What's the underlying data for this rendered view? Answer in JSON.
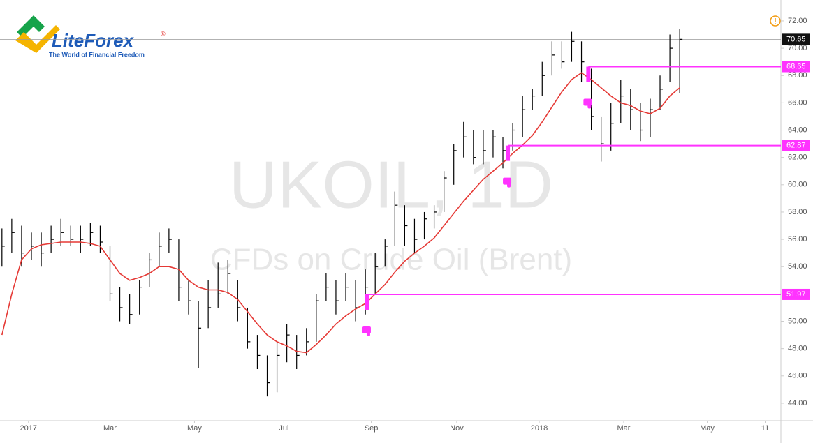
{
  "chart_data": {
    "type": "ohlc",
    "symbol": "UKOIL, 1D",
    "description": "CFDs on Crude Oil (Brent)",
    "brand": {
      "name": "LiteForex",
      "mark": "®",
      "tagline": "The World of Financial Freedom"
    },
    "high": [
      56.8,
      57.5,
      57,
      56.5,
      56.5,
      57,
      57.5,
      57,
      57,
      57.2,
      57,
      55.5,
      52.5,
      52,
      53,
      55,
      56.5,
      56.8,
      56,
      53,
      51.5,
      53,
      54.3,
      54.5,
      53,
      51,
      49,
      47.5,
      48.5,
      49.8,
      49,
      49.5,
      52,
      53.5,
      53,
      53.5,
      53,
      53.8,
      55,
      56,
      59.5,
      58.5,
      57.5,
      58,
      58.5,
      61,
      63,
      64.6,
      64,
      64,
      64,
      63.5,
      64.5,
      66.5,
      67,
      69,
      70.5,
      70.5,
      71.2,
      70.5,
      68.5,
      65,
      66,
      67.7,
      67,
      66,
      66.3,
      68,
      71,
      71.4
    ],
    "low": [
      54,
      55,
      54,
      54.5,
      54,
      55,
      55.5,
      55.5,
      55,
      55.5,
      55,
      51.5,
      50,
      49.8,
      50.5,
      52.5,
      54,
      55,
      51.5,
      50.5,
      46.6,
      49.5,
      51,
      52,
      50,
      48,
      46.5,
      44.5,
      44.8,
      47,
      46.5,
      47.5,
      48.5,
      51.5,
      50.5,
      51.5,
      50,
      50.5,
      52,
      54,
      55.5,
      55.5,
      55,
      56,
      56.8,
      58,
      60,
      62,
      61.5,
      61.5,
      62,
      61.2,
      62.5,
      63.5,
      65.5,
      66.5,
      68,
      68.5,
      69,
      67.5,
      64,
      61.7,
      62.5,
      64.5,
      64,
      63.2,
      63.5,
      65.5,
      67.5,
      66.7
    ],
    "close": [
      55.5,
      56.5,
      55,
      55.5,
      55,
      56,
      56.5,
      56,
      56,
      56.5,
      55.8,
      52,
      51,
      50.5,
      52.5,
      54.5,
      55.5,
      56,
      52.5,
      51.5,
      49.5,
      51,
      52,
      53.5,
      51,
      48.5,
      47.5,
      45.5,
      47.5,
      49,
      47.5,
      48.5,
      51.5,
      52.5,
      51.5,
      52.5,
      51,
      52.5,
      54,
      55.5,
      58.5,
      57,
      56,
      57.5,
      58,
      60.5,
      62.5,
      63.5,
      62,
      62.5,
      63.5,
      62.5,
      64,
      65.5,
      66.5,
      68,
      69.5,
      69,
      70.5,
      69,
      65,
      63,
      64.5,
      66.5,
      65.5,
      64,
      65.5,
      67,
      70,
      70.65
    ],
    "color": "#000000",
    "ma": [
      49,
      52,
      54.5,
      55.3,
      55.6,
      55.7,
      55.8,
      55.8,
      55.8,
      55.7,
      55.5,
      54.5,
      53.5,
      53,
      53.2,
      53.5,
      54,
      54,
      53.8,
      53,
      52.5,
      52.3,
      52.3,
      52.1,
      51.6,
      50.7,
      49.8,
      49,
      48.5,
      48.2,
      47.8,
      47.7,
      48.3,
      49,
      49.8,
      50.4,
      50.9,
      51.3,
      52,
      52.7,
      53.6,
      54.4,
      55,
      55.5,
      56.1,
      57,
      57.9,
      58.8,
      59.6,
      60.4,
      61,
      61.6,
      62.3,
      62.9,
      63.6,
      64.6,
      65.7,
      66.8,
      67.7,
      68.2,
      67.7,
      67.1,
      66.5,
      66,
      65.8,
      65.4,
      65.2,
      65.6,
      66.5,
      67.1
    ],
    "ma_color": "#e53935",
    "levels": [
      {
        "value": 68.65,
        "start": 59.7
      },
      {
        "value": 62.87,
        "start": 51.5
      },
      {
        "value": 51.97,
        "start": 37.2
      }
    ],
    "level_color": "#ff33ff",
    "last_price": 70.65,
    "xlim": [
      -0.2,
      79.3
    ],
    "xticks": [
      {
        "value": 2.7,
        "label": "2017"
      },
      {
        "value": 11.0,
        "label": "Mar"
      },
      {
        "value": 19.6,
        "label": "May"
      },
      {
        "value": 28.7,
        "label": "Jul"
      },
      {
        "value": 37.6,
        "label": "Sep"
      },
      {
        "value": 46.3,
        "label": "Nov"
      },
      {
        "value": 54.7,
        "label": "2018"
      },
      {
        "value": 63.3,
        "label": "Mar"
      },
      {
        "value": 71.8,
        "label": "May"
      },
      {
        "value": 77.7,
        "label": "11"
      }
    ],
    "ylim": [
      42.72,
      73.53
    ],
    "yticks": [
      {
        "value": 44,
        "label": "44.00"
      },
      {
        "value": 46,
        "label": "46.00"
      },
      {
        "value": 48,
        "label": "48.00"
      },
      {
        "value": 50,
        "label": "50.00"
      },
      {
        "value": 52,
        "label": "52.00"
      },
      {
        "value": 54,
        "label": "54.00"
      },
      {
        "value": 56,
        "label": "56.00"
      },
      {
        "value": 58,
        "label": "58.00"
      },
      {
        "value": 60,
        "label": "60.00"
      },
      {
        "value": 62,
        "label": "62.00"
      },
      {
        "value": 64,
        "label": "64.00"
      },
      {
        "value": 66,
        "label": "66.00"
      },
      {
        "value": 68,
        "label": "68.00"
      },
      {
        "value": 70,
        "label": "70.00"
      },
      {
        "value": 72,
        "label": "72.00"
      }
    ]
  }
}
